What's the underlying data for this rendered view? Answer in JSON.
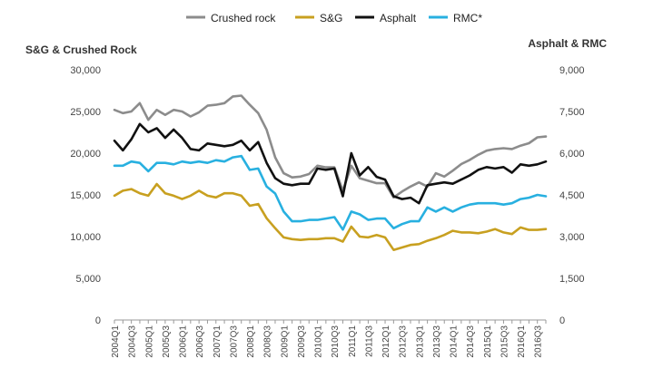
{
  "chart_data": {
    "type": "line",
    "title": "",
    "legend_position": "top-center",
    "left_axis": {
      "label": "S&G & Crushed Rock",
      "ylim": [
        0,
        30000
      ],
      "ticks": [
        0,
        5000,
        10000,
        15000,
        20000,
        25000,
        30000
      ],
      "tick_labels": [
        "0",
        "5,000",
        "10,000",
        "15,000",
        "20,000",
        "25,000",
        "30,000"
      ]
    },
    "right_axis": {
      "label": "Asphalt & RMC",
      "ylim": [
        0,
        9000
      ],
      "ticks": [
        0,
        1500,
        3000,
        4500,
        6000,
        7500,
        9000
      ],
      "tick_labels": [
        "0",
        "1,500",
        "3,000",
        "4,500",
        "6,000",
        "7,500",
        "9,000"
      ]
    },
    "x": [
      "2004Q1",
      "2004Q2",
      "2004Q3",
      "2004Q4",
      "2005Q1",
      "2005Q2",
      "2005Q3",
      "2005Q4",
      "2006Q1",
      "2006Q2",
      "2006Q3",
      "2006Q4",
      "2007Q1",
      "2007Q2",
      "2007Q3",
      "2007Q4",
      "2008Q1",
      "2008Q2",
      "2008Q3",
      "2008Q4",
      "2009Q1",
      "2009Q2",
      "2009Q3",
      "2009Q4",
      "2010Q1",
      "2010Q2",
      "2010Q3",
      "2010Q4",
      "2011Q1",
      "2011Q2",
      "2011Q3",
      "2011Q4",
      "2012Q1",
      "2012Q2",
      "2012Q3",
      "2012Q4",
      "2013Q1",
      "2013Q2",
      "2013Q3",
      "2013Q4",
      "2014Q1",
      "2014Q2",
      "2014Q3",
      "2014Q4",
      "2015Q1",
      "2015Q2",
      "2015Q3",
      "2015Q4",
      "2016Q1",
      "2016Q2",
      "2016Q3",
      "2016Q4"
    ],
    "x_tick_labels": [
      "2004Q1",
      "2004Q3",
      "2005Q1",
      "2005Q3",
      "2006Q1",
      "2006Q3",
      "2007Q1",
      "2007Q3",
      "2008Q1",
      "2008Q3",
      "2009Q1",
      "2009Q3",
      "2010Q1",
      "2010Q3",
      "2011Q1",
      "2011Q3",
      "2012Q1",
      "2012Q3",
      "2013Q1",
      "2013Q3",
      "2014Q1",
      "2014Q3",
      "2015Q1",
      "2015Q3",
      "2016Q1",
      "2016Q3"
    ],
    "series": [
      {
        "name": "Crushed rock",
        "axis": "left",
        "color": "#8c8c8c",
        "values": [
          25200,
          24800,
          25000,
          26000,
          24000,
          25200,
          24600,
          25200,
          25000,
          24400,
          24900,
          25700,
          25800,
          26000,
          26800,
          26900,
          25800,
          24800,
          22800,
          19500,
          17600,
          17100,
          17200,
          17500,
          18500,
          18300,
          18300,
          15500,
          18500,
          17000,
          16700,
          16400,
          16400,
          14700,
          15400,
          16000,
          16500,
          16000,
          17600,
          17200,
          17900,
          18700,
          19200,
          19800,
          20300,
          20500,
          20600,
          20500,
          20900,
          21200,
          21900,
          22000
        ]
      },
      {
        "name": "S&G",
        "axis": "left",
        "color": "#c8a020",
        "values": [
          14900,
          15500,
          15700,
          15200,
          14900,
          16300,
          15200,
          14900,
          14500,
          14900,
          15500,
          14900,
          14700,
          15200,
          15200,
          14900,
          13700,
          13900,
          12200,
          11000,
          9900,
          9700,
          9600,
          9700,
          9700,
          9800,
          9800,
          9400,
          11200,
          10000,
          9900,
          10200,
          9900,
          8400,
          8700,
          9000,
          9100,
          9500,
          9800,
          10200,
          10700,
          10500,
          10500,
          10400,
          10600,
          10900,
          10500,
          10300,
          11100,
          10800,
          10800,
          10900
        ]
      },
      {
        "name": "Asphalt",
        "axis": "right",
        "color": "#111111",
        "values": [
          6450,
          6100,
          6500,
          7050,
          6750,
          6900,
          6550,
          6850,
          6550,
          6150,
          6100,
          6350,
          6300,
          6250,
          6300,
          6450,
          6100,
          6400,
          5650,
          5100,
          4900,
          4850,
          4900,
          4900,
          5450,
          5400,
          5450,
          4450,
          6000,
          5200,
          5500,
          5150,
          5050,
          4450,
          4350,
          4400,
          4200,
          4850,
          4900,
          4950,
          4900,
          5050,
          5200,
          5400,
          5500,
          5450,
          5500,
          5300,
          5600,
          5550,
          5600,
          5700
        ]
      },
      {
        "name": "RMC*",
        "axis": "right",
        "color": "#28b0e0",
        "values": [
          5550,
          5550,
          5700,
          5650,
          5350,
          5650,
          5650,
          5600,
          5700,
          5650,
          5700,
          5650,
          5750,
          5700,
          5850,
          5900,
          5400,
          5450,
          4800,
          4550,
          3900,
          3550,
          3550,
          3600,
          3600,
          3650,
          3700,
          3250,
          3900,
          3800,
          3600,
          3650,
          3650,
          3300,
          3450,
          3550,
          3550,
          4050,
          3900,
          4050,
          3900,
          4050,
          4150,
          4200,
          4200,
          4200,
          4150,
          4200,
          4350,
          4400,
          4500,
          4450
        ]
      }
    ]
  }
}
